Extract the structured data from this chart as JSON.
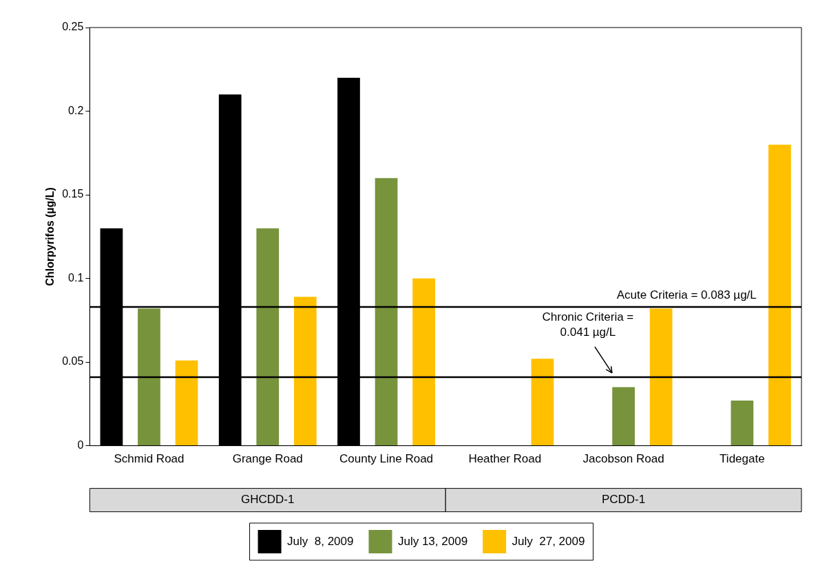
{
  "chart_data": {
    "type": "bar",
    "ylabel": "Chlorpyrifos (µg/L)",
    "categories": [
      "Schmid Road",
      "Grange Road",
      "County Line Road",
      "Heather Road",
      "Jacobson Road",
      "Tidegate"
    ],
    "series": [
      {
        "name": "July  8, 2009",
        "color": "#000000",
        "values": [
          0.13,
          0.21,
          0.22,
          null,
          null,
          null
        ]
      },
      {
        "name": "July 13, 2009",
        "color": "#77933c",
        "values": [
          0.082,
          0.13,
          0.16,
          null,
          0.035,
          0.027
        ]
      },
      {
        "name": "July  27, 2009",
        "color": "#ffc000",
        "values": [
          0.051,
          0.089,
          0.1,
          0.052,
          0.082,
          0.18
        ]
      }
    ],
    "ylim": [
      0,
      0.25
    ],
    "yticks": [
      0,
      0.05,
      0.1,
      0.15,
      0.2,
      0.25
    ],
    "grid": false,
    "legend": "bottom",
    "ref_lines": [
      {
        "axis": "y",
        "value": 0.083,
        "label": "Acute Criteria = 0.083 µg/L",
        "color": "#000000"
      },
      {
        "axis": "y",
        "value": 0.041,
        "label": "Chronic Criteria = 0.041 µg/L",
        "color": "#000000"
      }
    ],
    "annotations": [
      "GHCDD-1",
      "PCDD-1"
    ]
  }
}
